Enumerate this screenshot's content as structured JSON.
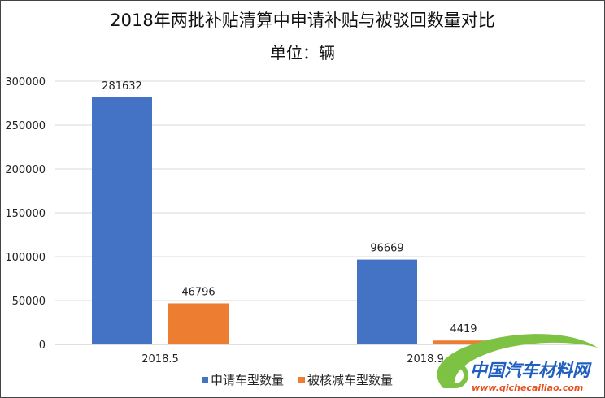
{
  "chart_data": {
    "type": "bar",
    "title": "2018年两批补贴清算中申请补贴与被驳回数量对比",
    "subtitle": "单位：辆",
    "categories": [
      "2018.5",
      "2018.9"
    ],
    "series": [
      {
        "name": "申请车型数量",
        "values": [
          281632,
          96669
        ],
        "color": "#4472C4"
      },
      {
        "name": "被核减车型数量",
        "values": [
          46796,
          4419
        ],
        "color": "#ED7D31"
      }
    ],
    "ylim": [
      0,
      300000
    ],
    "yticks": [
      0,
      50000,
      100000,
      150000,
      200000,
      250000,
      300000
    ],
    "grid": true,
    "legend": "bottom",
    "data_labels": true
  },
  "watermark": {
    "text": "中国汽车材料网",
    "url_text": "www.qichecailiao.com",
    "color_green": "#7DC242",
    "color_blue": "#1F5FBF"
  }
}
